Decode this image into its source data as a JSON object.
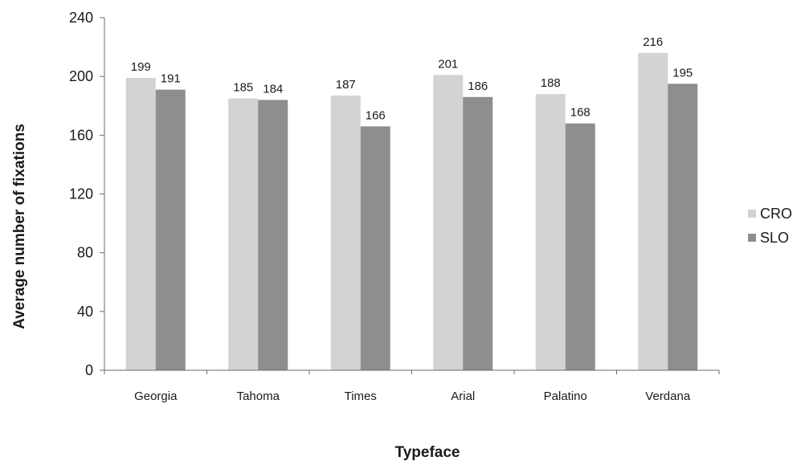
{
  "chart_data": {
    "type": "bar",
    "title": "",
    "xlabel": "Typeface",
    "ylabel": "Average number of fixations",
    "categories": [
      "Georgia",
      "Tahoma",
      "Times",
      "Arial",
      "Palatino",
      "Verdana"
    ],
    "series": [
      {
        "name": "CRO",
        "values": [
          199,
          185,
          187,
          201,
          188,
          216
        ],
        "color": "#d3d3d3"
      },
      {
        "name": "SLO",
        "values": [
          191,
          184,
          166,
          186,
          168,
          195
        ],
        "color": "#8e8e8e"
      }
    ],
    "ylim": [
      0,
      240
    ],
    "yticks": [
      0,
      40,
      80,
      120,
      160,
      200,
      240
    ],
    "grid": false,
    "legend_position": "right"
  }
}
